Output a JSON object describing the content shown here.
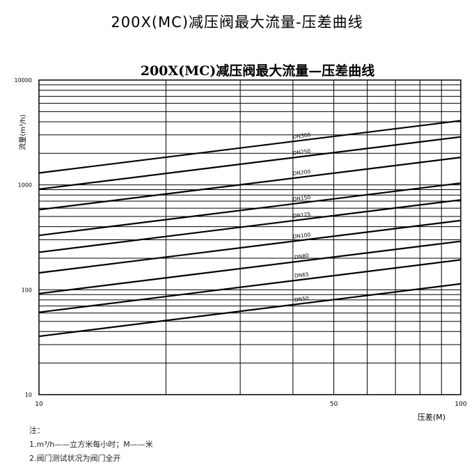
{
  "page": {
    "title": "200X(MC)减压阀最大流量-压差曲线"
  },
  "notes": {
    "heading": "注：",
    "items": [
      "1.m³/h——立方米每小时；M——米",
      "2.阀门测试状况为阀门全开"
    ]
  },
  "chart_data": {
    "type": "line",
    "title": "200X(MC)减压阀最大流量—压差曲线",
    "xlabel": "压差(M)",
    "ylabel": "流量(m³/h)",
    "x_scale": "log",
    "y_scale": "log",
    "xlim": [
      10,
      100
    ],
    "ylim": [
      10,
      10000
    ],
    "x_ticks": [
      10,
      50,
      100
    ],
    "x_tick_labels": [
      "10",
      "50",
      "100"
    ],
    "y_ticks": [
      10,
      100,
      1000,
      10000
    ],
    "y_tick_labels": [
      "10",
      "100",
      "1000",
      "10000"
    ],
    "grid": true,
    "x_gridlines": [
      10,
      20,
      30,
      40,
      50,
      60,
      70,
      80,
      90,
      100
    ],
    "y_gridlines": [
      10,
      20,
      30,
      40,
      50,
      60,
      70,
      80,
      90,
      100,
      200,
      300,
      400,
      500,
      600,
      700,
      800,
      900,
      1000,
      2000,
      3000,
      4000,
      5000,
      6000,
      7000,
      8000,
      9000,
      10000
    ],
    "series": [
      {
        "name": "DN300",
        "x": [
          10,
          100
        ],
        "y": [
          1300,
          4100
        ]
      },
      {
        "name": "DN250",
        "x": [
          10,
          100
        ],
        "y": [
          910,
          2870
        ]
      },
      {
        "name": "DN200",
        "x": [
          10,
          100
        ],
        "y": [
          580,
          1830
        ]
      },
      {
        "name": "DN150",
        "x": [
          10,
          100
        ],
        "y": [
          330,
          1040
        ]
      },
      {
        "name": "DN125",
        "x": [
          10,
          100
        ],
        "y": [
          228,
          720
        ]
      },
      {
        "name": "DN100",
        "x": [
          10,
          100
        ],
        "y": [
          145,
          458
        ]
      },
      {
        "name": "DN80",
        "x": [
          10,
          100
        ],
        "y": [
          92,
          290
        ]
      },
      {
        "name": "DN65",
        "x": [
          10,
          100
        ],
        "y": [
          61,
          193
        ]
      },
      {
        "name": "DN50",
        "x": [
          10,
          100
        ],
        "y": [
          36,
          114
        ]
      }
    ]
  }
}
